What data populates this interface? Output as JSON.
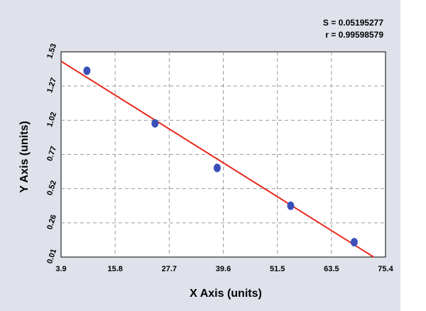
{
  "chart_data": {
    "type": "scatter",
    "title": "",
    "xlabel": "X Axis (units)",
    "ylabel": "Y Axis (units)",
    "xlim": [
      3.9,
      75.4
    ],
    "ylim": [
      0.01,
      1.53
    ],
    "xticks": [
      "3.9",
      "15.8",
      "27.7",
      "39.6",
      "51.5",
      "63.5",
      "75.4"
    ],
    "yticks": [
      "0.01",
      "0.26",
      "0.52",
      "0.77",
      "1.02",
      "1.27",
      "1.53"
    ],
    "grid": true,
    "points": [
      {
        "x": 9.6,
        "y": 1.39
      },
      {
        "x": 24.6,
        "y": 1.0
      },
      {
        "x": 38.3,
        "y": 0.67
      },
      {
        "x": 54.5,
        "y": 0.39
      },
      {
        "x": 68.5,
        "y": 0.12
      }
    ],
    "fit_line": {
      "x": [
        3.9,
        72.8
      ],
      "y": [
        1.46,
        0.01
      ],
      "color": "#e8291c"
    },
    "point_color": "#3a50b8",
    "stats": {
      "s": "S = 0.05195277",
      "r": "r = 0.99598579"
    }
  }
}
